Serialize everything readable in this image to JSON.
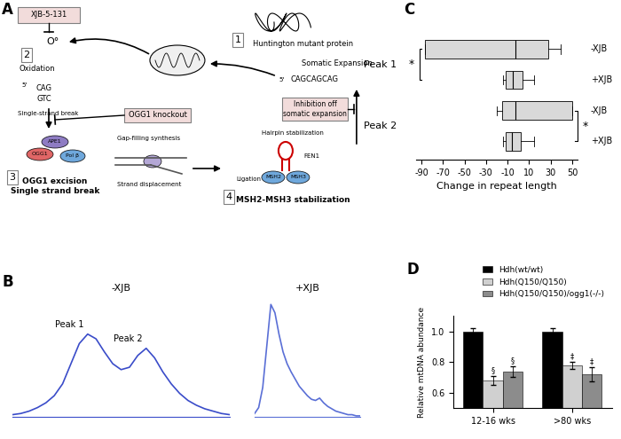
{
  "panel_labels": [
    "A",
    "B",
    "C",
    "D"
  ],
  "diagram": {
    "steps": [
      {
        "number": "1",
        "label": "Huntington mutant protein"
      },
      {
        "number": "2",
        "label": "Oxidation"
      },
      {
        "number": "3",
        "label": "OGG1 excision\nSingle strand break"
      },
      {
        "number": "4",
        "label": "MSH2-MSH3 stabilization"
      }
    ],
    "inhibitors": [
      "XJB-5-131",
      "OGG1 knockout",
      "Inhibition off\nsomatic expansion"
    ],
    "radical": "O°",
    "labels": {
      "single_strand_break": "Single-strand break",
      "ape1": "APE1",
      "ogg1": "OGG1",
      "pol": "Pol β",
      "gap_filling": "Gap-filling synthesis",
      "strand_displacement": "Strand displacement",
      "hairpin": "Hairpin stabilization",
      "fen1": "FEN1",
      "msh2": "MSH2",
      "msh3": "MSH3",
      "ligation": "Ligation",
      "somatic_expansion": "Somatic Expansion",
      "five_prime": "5'",
      "strand_top": "CAG",
      "strand_bottom": "GTC",
      "expanded": "CAGCAGCAG"
    }
  },
  "chart_data": [
    {
      "type": "line",
      "title": "-XJB",
      "color": "#3a4cc9",
      "x": [
        0,
        1,
        2,
        3,
        4,
        5,
        6,
        7,
        8,
        9,
        10,
        11,
        12,
        13,
        14,
        15,
        16,
        17,
        18,
        19,
        20,
        21,
        22,
        23,
        24,
        25,
        26
      ],
      "values": [
        2,
        3,
        5,
        8,
        12,
        18,
        28,
        45,
        62,
        70,
        66,
        55,
        45,
        40,
        42,
        52,
        58,
        50,
        38,
        28,
        20,
        14,
        10,
        7,
        5,
        3,
        2
      ],
      "xlim": [
        0,
        26
      ],
      "ylim": [
        0,
        100
      ],
      "tick_labels": false,
      "annotations": [
        {
          "text": "Peak 1",
          "x": 9
        },
        {
          "text": "Peak 2",
          "x": 16
        }
      ]
    },
    {
      "type": "line",
      "title": "+XJB",
      "color": "#5a6fd6",
      "x": [
        0,
        1,
        2,
        3,
        4,
        5,
        6,
        7,
        8,
        9,
        10,
        11,
        12,
        13,
        14,
        15,
        16,
        17,
        18,
        19,
        20,
        21,
        22,
        23,
        24,
        25,
        26
      ],
      "values": [
        3,
        8,
        25,
        60,
        95,
        88,
        70,
        55,
        45,
        38,
        32,
        26,
        22,
        18,
        15,
        14,
        16,
        12,
        9,
        7,
        5,
        4,
        3,
        2,
        2,
        1,
        1
      ],
      "xlim": [
        0,
        26
      ],
      "ylim": [
        0,
        100
      ],
      "tick_labels": false
    },
    {
      "type": "box",
      "orientation": "horizontal",
      "xlabel": "Change in repeat length",
      "xlim": [
        -95,
        55
      ],
      "xticks": [
        -90,
        -70,
        -50,
        -30,
        -10,
        10,
        30,
        50
      ],
      "tick_labels": "x",
      "color": "#d9d9d9",
      "groups": [
        {
          "name": "Peak 1",
          "significance": "*",
          "boxes": [
            {
              "name": "-XJB",
              "whislo": -87,
              "q1": -87,
              "med": -3,
              "q3": 28,
              "whishi": 39
            },
            {
              "name": "+XJB",
              "whislo": -14,
              "q1": -12,
              "med": -5,
              "q3": 4,
              "whishi": 15
            }
          ]
        },
        {
          "name": "Peak 2",
          "significance": "*",
          "boxes": [
            {
              "name": "-XJB",
              "whislo": -20,
              "q1": -15,
              "med": -3,
              "q3": 50,
              "whishi": 50
            },
            {
              "name": "+XJB",
              "whislo": -14,
              "q1": -12,
              "med": -6,
              "q3": 2,
              "whishi": 15
            }
          ]
        }
      ]
    },
    {
      "type": "bar",
      "ylabel": "Relative mtDNA abundance",
      "categories": [
        "12-16 wks",
        ">80 wks"
      ],
      "ylim": [
        0.5,
        1.1
      ],
      "yticks": [
        0.6,
        0.8,
        1.0
      ],
      "legend": "upper right",
      "series": [
        {
          "name": "Hdh(wt/wt)",
          "color": "#000000",
          "values": [
            1.0,
            1.0
          ],
          "errors": [
            0.02,
            0.02
          ],
          "significance": [
            null,
            null
          ]
        },
        {
          "name": "Hdh(Q150/Q150)",
          "color": "#d0d0d0",
          "values": [
            0.68,
            0.78
          ],
          "errors": [
            0.03,
            0.025
          ],
          "significance": [
            "§",
            "‡"
          ]
        },
        {
          "name": "Hdh(Q150/Q150)/ogg1(-/-)",
          "color": "#8c8c8c",
          "values": [
            0.74,
            0.72
          ],
          "errors": [
            0.035,
            0.045
          ],
          "significance": [
            "§",
            "‡"
          ]
        }
      ]
    }
  ]
}
